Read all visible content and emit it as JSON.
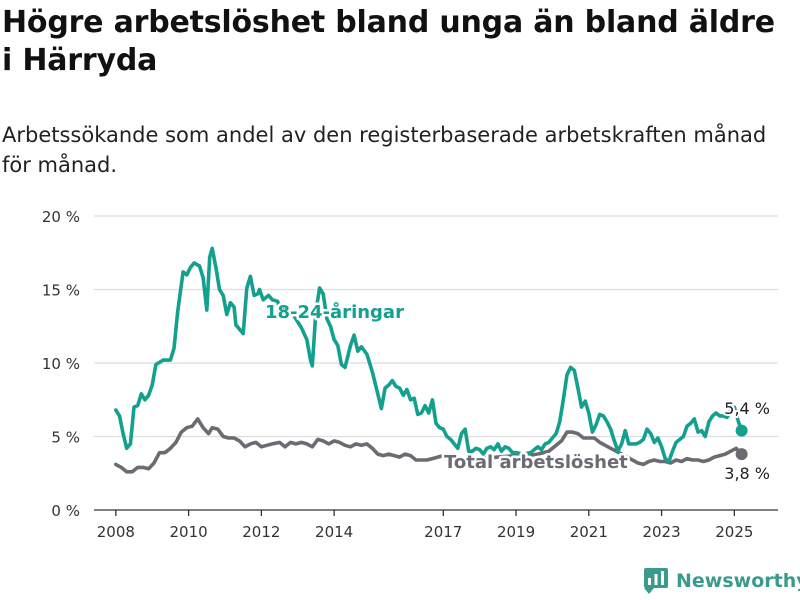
{
  "title": "Högre arbetslöshet bland unga än bland äldre i Härryda",
  "subtitle": "Arbetssökande som andel av den registerbaserade arbetskraften månad för månad.",
  "brand": {
    "name": "Newsworthy",
    "logo_icon": "bar-chart-logo-icon"
  },
  "colors": {
    "youth": "#13a08f",
    "total": "#6c6b72",
    "grid": "#dedede",
    "axis": "#333333"
  },
  "chart_data": {
    "type": "line",
    "title": "Högre arbetslöshet bland unga än bland äldre i Härryda",
    "subtitle": "Arbetssökande som andel av den registerbaserade arbetskraften månad för månad.",
    "xlabel": "",
    "ylabel": "",
    "x_range": [
      2007.4,
      2026.2
    ],
    "ylim": [
      0,
      20
    ],
    "yticks": [
      0,
      5,
      10,
      15,
      20
    ],
    "ytick_labels": [
      "0 %",
      "5 %",
      "10 %",
      "15 %",
      "20 %"
    ],
    "xticks": [
      2008,
      2010,
      2012,
      2014,
      2017,
      2019,
      2021,
      2023,
      2025
    ],
    "xtick_labels": [
      "2008",
      "2010",
      "2012",
      "2014",
      "2017",
      "2019",
      "2021",
      "2023",
      "2025"
    ],
    "grid": true,
    "legend": "inline labels",
    "series": [
      {
        "name": "18-24-åringar",
        "color": "#13a08f",
        "end_label": "5,4 %",
        "points": [
          [
            2008.0,
            6.8
          ],
          [
            2008.1,
            6.4
          ],
          [
            2008.2,
            5.2
          ],
          [
            2008.3,
            4.2
          ],
          [
            2008.4,
            4.5
          ],
          [
            2008.5,
            7.0
          ],
          [
            2008.6,
            7.1
          ],
          [
            2008.7,
            7.9
          ],
          [
            2008.8,
            7.5
          ],
          [
            2008.9,
            7.8
          ],
          [
            2009.0,
            8.5
          ],
          [
            2009.1,
            9.9
          ],
          [
            2009.3,
            10.2
          ],
          [
            2009.5,
            10.2
          ],
          [
            2009.6,
            11.0
          ],
          [
            2009.7,
            13.5
          ],
          [
            2009.85,
            16.2
          ],
          [
            2009.95,
            16.0
          ],
          [
            2010.05,
            16.5
          ],
          [
            2010.15,
            16.8
          ],
          [
            2010.3,
            16.6
          ],
          [
            2010.4,
            15.8
          ],
          [
            2010.5,
            13.6
          ],
          [
            2010.58,
            17.2
          ],
          [
            2010.65,
            17.8
          ],
          [
            2010.75,
            16.5
          ],
          [
            2010.85,
            15.0
          ],
          [
            2010.95,
            14.6
          ],
          [
            2011.05,
            13.3
          ],
          [
            2011.15,
            14.1
          ],
          [
            2011.25,
            13.8
          ],
          [
            2011.3,
            12.6
          ],
          [
            2011.4,
            12.3
          ],
          [
            2011.5,
            12.0
          ],
          [
            2011.6,
            15.1
          ],
          [
            2011.7,
            15.9
          ],
          [
            2011.8,
            14.6
          ],
          [
            2011.9,
            14.7
          ],
          [
            2011.95,
            15.0
          ],
          [
            2012.05,
            14.3
          ],
          [
            2012.2,
            14.6
          ],
          [
            2012.3,
            14.3
          ],
          [
            2012.45,
            14.2
          ],
          [
            2012.55,
            13.2
          ],
          [
            2012.65,
            14.0
          ],
          [
            2012.75,
            13.2
          ],
          [
            2012.85,
            13.4
          ],
          [
            2012.95,
            13.0
          ],
          [
            2013.1,
            12.4
          ],
          [
            2013.25,
            11.6
          ],
          [
            2013.35,
            10.2
          ],
          [
            2013.4,
            9.8
          ],
          [
            2013.5,
            13.5
          ],
          [
            2013.6,
            15.1
          ],
          [
            2013.7,
            14.7
          ],
          [
            2013.8,
            13.0
          ],
          [
            2013.9,
            12.5
          ],
          [
            2014.0,
            11.6
          ],
          [
            2014.1,
            11.2
          ],
          [
            2014.2,
            9.9
          ],
          [
            2014.3,
            9.7
          ],
          [
            2014.45,
            11.2
          ],
          [
            2014.55,
            11.9
          ],
          [
            2014.65,
            10.8
          ],
          [
            2014.75,
            11.1
          ],
          [
            2014.9,
            10.6
          ],
          [
            2015.05,
            9.4
          ],
          [
            2015.2,
            7.9
          ],
          [
            2015.3,
            6.9
          ],
          [
            2015.4,
            8.3
          ],
          [
            2015.5,
            8.5
          ],
          [
            2015.6,
            8.8
          ],
          [
            2015.7,
            8.4
          ],
          [
            2015.8,
            8.3
          ],
          [
            2015.9,
            7.8
          ],
          [
            2016.0,
            8.2
          ],
          [
            2016.1,
            7.5
          ],
          [
            2016.2,
            7.6
          ],
          [
            2016.3,
            6.5
          ],
          [
            2016.4,
            6.6
          ],
          [
            2016.5,
            7.1
          ],
          [
            2016.6,
            6.6
          ],
          [
            2016.7,
            7.5
          ],
          [
            2016.8,
            5.9
          ],
          [
            2016.9,
            5.6
          ],
          [
            2017.0,
            5.5
          ],
          [
            2017.1,
            5.0
          ],
          [
            2017.2,
            4.8
          ],
          [
            2017.3,
            4.5
          ],
          [
            2017.4,
            4.2
          ],
          [
            2017.5,
            5.2
          ],
          [
            2017.6,
            5.5
          ],
          [
            2017.7,
            4.0
          ],
          [
            2017.8,
            4.0
          ],
          [
            2017.9,
            4.2
          ],
          [
            2018.0,
            4.1
          ],
          [
            2018.1,
            3.8
          ],
          [
            2018.2,
            4.2
          ],
          [
            2018.3,
            4.3
          ],
          [
            2018.4,
            4.1
          ],
          [
            2018.5,
            4.5
          ],
          [
            2018.6,
            4.0
          ],
          [
            2018.7,
            4.3
          ],
          [
            2018.8,
            4.2
          ],
          [
            2018.9,
            3.9
          ],
          [
            2019.0,
            3.9
          ],
          [
            2019.2,
            3.8
          ],
          [
            2019.4,
            3.9
          ],
          [
            2019.5,
            4.1
          ],
          [
            2019.6,
            4.3
          ],
          [
            2019.7,
            4.1
          ],
          [
            2019.8,
            4.5
          ],
          [
            2019.9,
            4.6
          ],
          [
            2020.0,
            4.9
          ],
          [
            2020.1,
            5.2
          ],
          [
            2020.2,
            6.0
          ],
          [
            2020.3,
            7.5
          ],
          [
            2020.4,
            9.2
          ],
          [
            2020.5,
            9.7
          ],
          [
            2020.6,
            9.5
          ],
          [
            2020.7,
            8.3
          ],
          [
            2020.8,
            7.0
          ],
          [
            2020.9,
            7.4
          ],
          [
            2021.0,
            6.6
          ],
          [
            2021.1,
            5.3
          ],
          [
            2021.2,
            5.8
          ],
          [
            2021.3,
            6.5
          ],
          [
            2021.4,
            6.4
          ],
          [
            2021.5,
            6.0
          ],
          [
            2021.6,
            5.5
          ],
          [
            2021.7,
            4.7
          ],
          [
            2021.8,
            4.0
          ],
          [
            2021.9,
            4.5
          ],
          [
            2022.0,
            5.4
          ],
          [
            2022.1,
            4.5
          ],
          [
            2022.2,
            4.5
          ],
          [
            2022.3,
            4.5
          ],
          [
            2022.4,
            4.6
          ],
          [
            2022.5,
            4.8
          ],
          [
            2022.6,
            5.5
          ],
          [
            2022.7,
            5.2
          ],
          [
            2022.8,
            4.6
          ],
          [
            2022.9,
            4.9
          ],
          [
            2023.0,
            4.3
          ],
          [
            2023.1,
            3.5
          ],
          [
            2023.2,
            3.3
          ],
          [
            2023.3,
            4.0
          ],
          [
            2023.4,
            4.6
          ],
          [
            2023.5,
            4.8
          ],
          [
            2023.6,
            5.0
          ],
          [
            2023.7,
            5.7
          ],
          [
            2023.8,
            5.9
          ],
          [
            2023.9,
            6.2
          ],
          [
            2024.0,
            5.3
          ],
          [
            2024.1,
            5.4
          ],
          [
            2024.2,
            5.0
          ],
          [
            2024.3,
            6.0
          ],
          [
            2024.4,
            6.4
          ],
          [
            2024.5,
            6.6
          ],
          [
            2024.6,
            6.4
          ],
          [
            2024.7,
            6.4
          ],
          [
            2024.8,
            6.3
          ],
          [
            2024.9,
            6.8
          ],
          [
            2025.0,
            7.0
          ],
          [
            2025.1,
            6.1
          ],
          [
            2025.2,
            5.4
          ]
        ]
      },
      {
        "name": "Total arbetslöshet",
        "color": "#6c6b72",
        "end_label": "3,8 %",
        "points": [
          [
            2008.0,
            3.1
          ],
          [
            2008.15,
            2.9
          ],
          [
            2008.3,
            2.6
          ],
          [
            2008.45,
            2.6
          ],
          [
            2008.6,
            2.9
          ],
          [
            2008.75,
            2.9
          ],
          [
            2008.9,
            2.8
          ],
          [
            2009.05,
            3.2
          ],
          [
            2009.2,
            3.9
          ],
          [
            2009.35,
            3.9
          ],
          [
            2009.5,
            4.2
          ],
          [
            2009.65,
            4.6
          ],
          [
            2009.8,
            5.3
          ],
          [
            2009.95,
            5.6
          ],
          [
            2010.1,
            5.7
          ],
          [
            2010.25,
            6.2
          ],
          [
            2010.4,
            5.6
          ],
          [
            2010.55,
            5.2
          ],
          [
            2010.65,
            5.6
          ],
          [
            2010.8,
            5.5
          ],
          [
            2010.95,
            5.0
          ],
          [
            2011.1,
            4.9
          ],
          [
            2011.25,
            4.9
          ],
          [
            2011.4,
            4.7
          ],
          [
            2011.55,
            4.3
          ],
          [
            2011.7,
            4.5
          ],
          [
            2011.85,
            4.6
          ],
          [
            2012.0,
            4.3
          ],
          [
            2012.15,
            4.4
          ],
          [
            2012.3,
            4.5
          ],
          [
            2012.5,
            4.6
          ],
          [
            2012.65,
            4.3
          ],
          [
            2012.8,
            4.6
          ],
          [
            2012.95,
            4.5
          ],
          [
            2013.1,
            4.6
          ],
          [
            2013.25,
            4.5
          ],
          [
            2013.4,
            4.3
          ],
          [
            2013.55,
            4.8
          ],
          [
            2013.7,
            4.7
          ],
          [
            2013.85,
            4.5
          ],
          [
            2014.0,
            4.7
          ],
          [
            2014.15,
            4.6
          ],
          [
            2014.3,
            4.4
          ],
          [
            2014.45,
            4.3
          ],
          [
            2014.6,
            4.5
          ],
          [
            2014.75,
            4.4
          ],
          [
            2014.9,
            4.5
          ],
          [
            2015.05,
            4.2
          ],
          [
            2015.2,
            3.8
          ],
          [
            2015.35,
            3.7
          ],
          [
            2015.5,
            3.8
          ],
          [
            2015.65,
            3.7
          ],
          [
            2015.8,
            3.6
          ],
          [
            2015.95,
            3.8
          ],
          [
            2016.1,
            3.7
          ],
          [
            2016.25,
            3.4
          ],
          [
            2016.4,
            3.4
          ],
          [
            2016.55,
            3.4
          ],
          [
            2016.7,
            3.5
          ],
          [
            2016.85,
            3.6
          ],
          [
            2017.0,
            3.7
          ],
          [
            2017.3,
            3.6
          ],
          [
            2017.6,
            3.5
          ],
          [
            2018.0,
            3.5
          ],
          [
            2018.5,
            3.6
          ],
          [
            2019.0,
            3.7
          ],
          [
            2019.3,
            3.7
          ],
          [
            2019.6,
            3.8
          ],
          [
            2019.9,
            4.0
          ],
          [
            2020.1,
            4.4
          ],
          [
            2020.25,
            4.7
          ],
          [
            2020.4,
            5.3
          ],
          [
            2020.55,
            5.3
          ],
          [
            2020.7,
            5.2
          ],
          [
            2020.85,
            4.9
          ],
          [
            2021.0,
            4.9
          ],
          [
            2021.15,
            4.9
          ],
          [
            2021.3,
            4.6
          ],
          [
            2021.45,
            4.4
          ],
          [
            2021.6,
            4.2
          ],
          [
            2021.75,
            4.0
          ],
          [
            2021.9,
            3.8
          ],
          [
            2022.05,
            3.6
          ],
          [
            2022.2,
            3.4
          ],
          [
            2022.35,
            3.2
          ],
          [
            2022.5,
            3.1
          ],
          [
            2022.65,
            3.3
          ],
          [
            2022.8,
            3.4
          ],
          [
            2022.95,
            3.3
          ],
          [
            2023.1,
            3.3
          ],
          [
            2023.25,
            3.2
          ],
          [
            2023.4,
            3.4
          ],
          [
            2023.55,
            3.3
          ],
          [
            2023.7,
            3.5
          ],
          [
            2023.85,
            3.4
          ],
          [
            2024.0,
            3.4
          ],
          [
            2024.15,
            3.3
          ],
          [
            2024.3,
            3.4
          ],
          [
            2024.45,
            3.6
          ],
          [
            2024.6,
            3.7
          ],
          [
            2024.75,
            3.8
          ],
          [
            2024.9,
            4.0
          ],
          [
            2025.05,
            4.2
          ],
          [
            2025.2,
            3.8
          ]
        ]
      }
    ]
  }
}
